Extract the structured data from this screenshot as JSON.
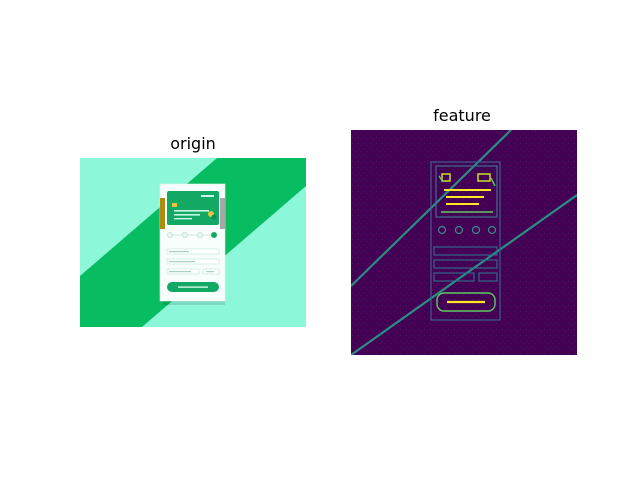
{
  "panels": [
    {
      "title": "origin"
    },
    {
      "title": "feature"
    }
  ],
  "mockup": {
    "form_fields": [
      "",
      "",
      ""
    ],
    "button_label": "",
    "card_text": ""
  },
  "colors": {
    "origin_light": "#8df7da",
    "origin_stripe": "#08bc62",
    "card_green": "#14a865",
    "feature_bg": "#440154",
    "feature_line": "#2a9c8a",
    "feature_highlight": "#fde725"
  }
}
